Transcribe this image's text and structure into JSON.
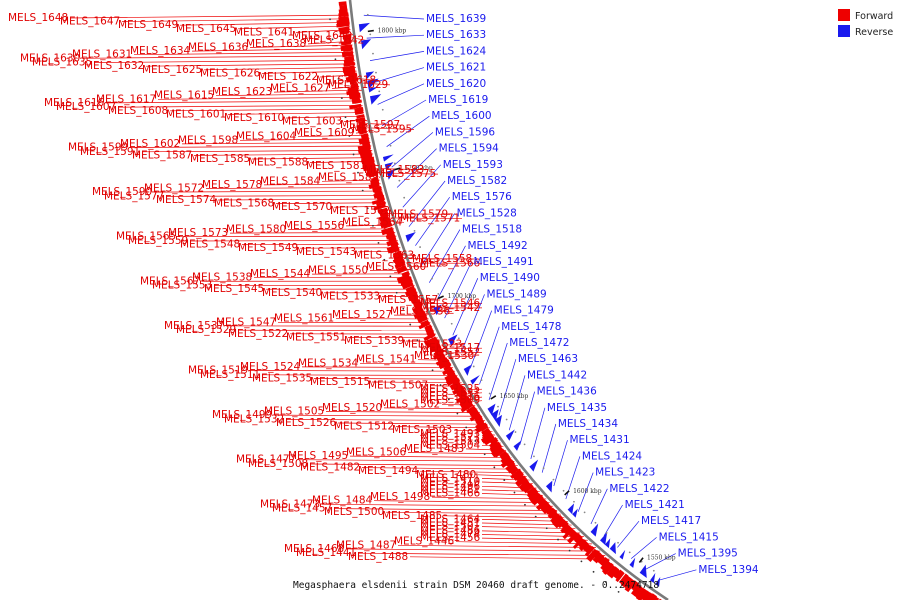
{
  "caption": "Megasphaera elsdenii strain DSM 20460 draft genome. - 0..2474718",
  "legend": [
    {
      "label": "Forward",
      "color": "#ee0000"
    },
    {
      "label": "Reverse",
      "color": "#1a1aee"
    }
  ],
  "scale_ticks": [
    "1800 kbp",
    "1750 kbp",
    "1700 kbp",
    "1650 kbp",
    "1600 kbp",
    "1550 kbp"
  ],
  "forward_labels": [
    "MELS_1648",
    "MELS_1647",
    "MELS_1649",
    "MELS_1645",
    "MELS_1641",
    "MELS_1640",
    "MELS_1642",
    "MELS_1638",
    "MELS_1636",
    "MELS_1634",
    "MELS_1631",
    "MELS_1630",
    "MELS_1635",
    "MELS_1632",
    "MELS_1625",
    "MELS_1626",
    "MELS_1622",
    "MELS_1618",
    "MELS_1629",
    "MELS_1627",
    "MELS_1623",
    "MELS_1615",
    "MELS_1617",
    "MELS_1616",
    "MELS_1607",
    "MELS_1608",
    "MELS_1601",
    "MELS_1610",
    "MELS_1603",
    "MELS_1597",
    "MELS_1595",
    "MELS_1609",
    "MELS_1604",
    "MELS_1598",
    "MELS_1602",
    "MELS_1599",
    "MELS_1591",
    "MELS_1587",
    "MELS_1585",
    "MELS_1588",
    "MELS_1581",
    "MELS_1583",
    "MELS_1575",
    "MELS_1589",
    "MELS_1584",
    "MELS_1578",
    "MELS_1572",
    "MELS_1590",
    "MELS_1577",
    "MELS_1574",
    "MELS_1568",
    "MELS_1570",
    "MELS_1562",
    "MELS_1579",
    "MELS_1571",
    "MELS_1564",
    "MELS_1556",
    "MELS_1580",
    "MELS_1573",
    "MELS_1565",
    "MELS_1559",
    "MELS_1548",
    "MELS_1549",
    "MELS_1543",
    "MELS_1563",
    "MELS_1558",
    "MELS_1566",
    "MELS_1560",
    "MELS_1550",
    "MELS_1544",
    "MELS_1538",
    "MELS_1567",
    "MELS_1553",
    "MELS_1545",
    "MELS_1540",
    "MELS_1533",
    "MELS_1557",
    "MELS_1546",
    "MELS_1542",
    "MELS_1536",
    "MELS_1527",
    "MELS_1561",
    "MELS_1547",
    "MELS_1537",
    "MELS_1529",
    "MELS_1522",
    "MELS_1551",
    "MELS_1539",
    "MELS_1523",
    "MELS_1517",
    "MELS_1552",
    "MELS_1530",
    "MELS_1541",
    "MELS_1534",
    "MELS_1524",
    "MELS_1519",
    "MELS_1511",
    "MELS_1535",
    "MELS_1515",
    "MELS_1507",
    "MELS_1525",
    "MELS_1531",
    "MELS_1516",
    "MELS_1509",
    "MELS_1502",
    "MELS_1520",
    "MELS_1505",
    "MELS_1499",
    "MELS_1532",
    "MELS_1526",
    "MELS_1512",
    "MELS_1503",
    "MELS_1493",
    "MELS_1521",
    "MELS_1513",
    "MELS_1504",
    "MELS_1483",
    "MELS_1506",
    "MELS_1495",
    "MELS_1477",
    "MELS_1508",
    "MELS_1482",
    "MELS_1494",
    "MELS_1480",
    "MELS_1471",
    "MELS_1510",
    "MELS_1496",
    "MELS_1481",
    "MELS_1466",
    "MELS_1498",
    "MELS_1484",
    "MELS_1473",
    "MELS_1457",
    "MELS_1500",
    "MELS_1485",
    "MELS_1464",
    "MELS_1451",
    "MELS_1501",
    "MELS_1486",
    "MELS_1474",
    "MELS_1456",
    "MELS_1446",
    "MELS_1487",
    "MELS_1468",
    "MELS_1441",
    "MELS_1488",
    "MELS_1475",
    "MELS_1461",
    "MELS_1450",
    "MELS_1497",
    "MELS_1476",
    "MELS_1467",
    "MELS_1452",
    "MELS_1444",
    "MELS_1433"
  ],
  "reverse_labels": [
    "MELS_1639",
    "MELS_1633",
    "MELS_1624",
    "MELS_1621",
    "MELS_1620",
    "MELS_1619",
    "MELS_1600",
    "MELS_1596",
    "MELS_1594",
    "MELS_1593",
    "MELS_1582",
    "MELS_1576",
    "MELS_1528",
    "MELS_1518",
    "MELS_1492",
    "MELS_1491",
    "MELS_1490",
    "MELS_1489",
    "MELS_1479",
    "MELS_1478",
    "MELS_1472",
    "MELS_1463",
    "MELS_1442",
    "MELS_1436",
    "MELS_1435",
    "MELS_1434",
    "MELS_1431",
    "MELS_1424",
    "MELS_1423",
    "MELS_1422",
    "MELS_1421",
    "MELS_1417",
    "MELS_1415",
    "MELS_1395",
    "MELS_1394"
  ]
}
